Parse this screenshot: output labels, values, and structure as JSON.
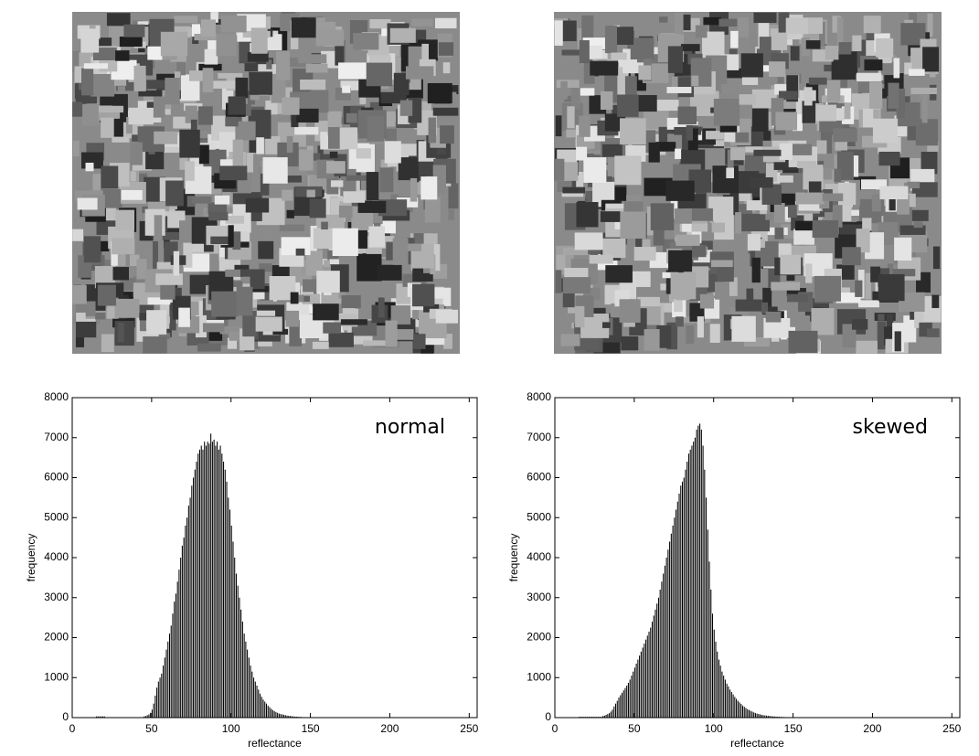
{
  "chart_data": [
    {
      "type": "histogram",
      "annotation": "normal",
      "xlabel": "reflectance",
      "ylabel": "frequency",
      "color": "#000000",
      "xlim": [
        0,
        255
      ],
      "xticks": [
        0,
        50,
        100,
        150,
        200,
        250
      ],
      "ylim": [
        0,
        8000
      ],
      "yticks": [
        0,
        1000,
        2000,
        3000,
        4000,
        5000,
        6000,
        7000,
        8000
      ],
      "bins": [
        0,
        1,
        2,
        3,
        4,
        5,
        6,
        7,
        8,
        9,
        10,
        11,
        12,
        13,
        14,
        15,
        16,
        17,
        18,
        19,
        20,
        21,
        22,
        23,
        24,
        25,
        26,
        27,
        28,
        29,
        30,
        31,
        32,
        33,
        34,
        35,
        36,
        37,
        38,
        39,
        40,
        41,
        42,
        43,
        44,
        45,
        46,
        47,
        48,
        49,
        50,
        51,
        52,
        53,
        54,
        55,
        56,
        57,
        58,
        59,
        60,
        61,
        62,
        63,
        64,
        65,
        66,
        67,
        68,
        69,
        70,
        71,
        72,
        73,
        74,
        75,
        76,
        77,
        78,
        79,
        80,
        81,
        82,
        83,
        84,
        85,
        86,
        87,
        88,
        89,
        90,
        91,
        92,
        93,
        94,
        95,
        96,
        97,
        98,
        99,
        100,
        101,
        102,
        103,
        104,
        105,
        106,
        107,
        108,
        109,
        110,
        111,
        112,
        113,
        114,
        115,
        116,
        117,
        118,
        119,
        120,
        121,
        122,
        123,
        124,
        125,
        126,
        127,
        128,
        129,
        130,
        131,
        132,
        133,
        134,
        135,
        136,
        137,
        138,
        139,
        140,
        141,
        142,
        143,
        144,
        145,
        146,
        147,
        148,
        149,
        150,
        151,
        152,
        153,
        154,
        155,
        156,
        157,
        158,
        159,
        160,
        161,
        162,
        163,
        164,
        165,
        166,
        167,
        168,
        169,
        170,
        171
      ],
      "values": [
        5,
        5,
        5,
        5,
        5,
        5,
        5,
        5,
        5,
        5,
        5,
        5,
        5,
        5,
        5,
        30,
        30,
        30,
        30,
        30,
        30,
        10,
        10,
        10,
        10,
        10,
        10,
        10,
        10,
        10,
        10,
        10,
        10,
        10,
        10,
        10,
        10,
        10,
        10,
        10,
        10,
        10,
        10,
        10,
        10,
        30,
        40,
        60,
        80,
        120,
        200,
        350,
        550,
        750,
        900,
        1000,
        1100,
        1300,
        1500,
        1700,
        1900,
        2100,
        2300,
        2600,
        2900,
        3100,
        3400,
        3700,
        4000,
        4300,
        4500,
        4800,
        5000,
        5300,
        5500,
        5800,
        6000,
        6200,
        6400,
        6600,
        6700,
        6800,
        6700,
        6900,
        6800,
        6900,
        6850,
        7100,
        6900,
        6950,
        6800,
        6900,
        6700,
        6800,
        6600,
        6400,
        6200,
        5900,
        5500,
        5200,
        4800,
        4400,
        4000,
        3600,
        3300,
        3000,
        2700,
        2400,
        2100,
        1900,
        1700,
        1500,
        1300,
        1150,
        1000,
        900,
        800,
        700,
        600,
        520,
        450,
        400,
        350,
        300,
        260,
        220,
        190,
        160,
        140,
        120,
        100,
        90,
        80,
        70,
        60,
        50,
        45,
        40,
        35,
        30,
        25,
        22,
        20,
        18,
        15,
        12,
        10,
        8,
        6,
        5,
        3,
        3,
        3,
        2,
        2,
        2,
        1,
        1,
        1,
        1,
        1,
        1,
        1,
        1,
        1,
        0,
        0,
        0,
        0,
        0,
        0
      ]
    },
    {
      "type": "histogram",
      "annotation": "skewed",
      "xlabel": "reflectance",
      "ylabel": "frequency",
      "color": "#000000",
      "xlim": [
        0,
        255
      ],
      "xticks": [
        0,
        50,
        100,
        150,
        200,
        250
      ],
      "ylim": [
        0,
        8000
      ],
      "yticks": [
        0,
        1000,
        2000,
        3000,
        4000,
        5000,
        6000,
        7000,
        8000
      ],
      "bins": [
        0,
        1,
        2,
        3,
        4,
        5,
        6,
        7,
        8,
        9,
        10,
        11,
        12,
        13,
        14,
        15,
        16,
        17,
        18,
        19,
        20,
        21,
        22,
        23,
        24,
        25,
        26,
        27,
        28,
        29,
        30,
        31,
        32,
        33,
        34,
        35,
        36,
        37,
        38,
        39,
        40,
        41,
        42,
        43,
        44,
        45,
        46,
        47,
        48,
        49,
        50,
        51,
        52,
        53,
        54,
        55,
        56,
        57,
        58,
        59,
        60,
        61,
        62,
        63,
        64,
        65,
        66,
        67,
        68,
        69,
        70,
        71,
        72,
        73,
        74,
        75,
        76,
        77,
        78,
        79,
        80,
        81,
        82,
        83,
        84,
        85,
        86,
        87,
        88,
        89,
        90,
        91,
        92,
        93,
        94,
        95,
        96,
        97,
        98,
        99,
        100,
        101,
        102,
        103,
        104,
        105,
        106,
        107,
        108,
        109,
        110,
        111,
        112,
        113,
        114,
        115,
        116,
        117,
        118,
        119,
        120,
        121,
        122,
        123,
        124,
        125,
        126,
        127,
        128,
        129,
        130,
        131,
        132,
        133,
        134,
        135,
        136,
        137,
        138,
        139,
        140,
        141,
        142,
        143,
        144,
        145,
        146,
        147,
        148,
        149,
        150,
        151,
        152,
        153,
        154,
        155,
        156,
        157,
        158,
        159,
        160,
        161,
        162,
        163,
        164,
        165,
        166,
        167,
        168,
        169,
        170,
        171
      ],
      "values": [
        10,
        10,
        10,
        10,
        10,
        10,
        10,
        10,
        10,
        10,
        10,
        10,
        10,
        10,
        10,
        20,
        20,
        20,
        20,
        20,
        20,
        20,
        20,
        20,
        20,
        20,
        20,
        20,
        20,
        20,
        40,
        50,
        70,
        90,
        110,
        150,
        200,
        280,
        350,
        420,
        500,
        560,
        620,
        680,
        740,
        800,
        870,
        950,
        1050,
        1150,
        1250,
        1350,
        1450,
        1550,
        1650,
        1750,
        1850,
        1950,
        2050,
        2150,
        2250,
        2400,
        2550,
        2700,
        2850,
        3000,
        3200,
        3400,
        3600,
        3800,
        4000,
        4200,
        4400,
        4600,
        4800,
        5000,
        5200,
        5400,
        5600,
        5800,
        5900,
        6000,
        6200,
        6400,
        6600,
        6700,
        6800,
        6900,
        7000,
        7200,
        7300,
        7350,
        7200,
        6800,
        6200,
        5500,
        4700,
        3900,
        3200,
        2600,
        2200,
        1900,
        1650,
        1450,
        1300,
        1150,
        1050,
        950,
        850,
        780,
        700,
        640,
        580,
        520,
        470,
        420,
        380,
        340,
        300,
        270,
        240,
        210,
        190,
        170,
        150,
        130,
        115,
        100,
        90,
        80,
        70,
        60,
        55,
        50,
        45,
        40,
        35,
        30,
        28,
        25,
        22,
        20,
        18,
        16,
        14,
        12,
        10,
        8,
        7,
        6,
        5,
        4,
        4,
        3,
        3,
        3,
        2,
        2,
        2,
        2,
        2,
        1,
        1,
        1,
        1,
        1,
        1,
        1,
        1,
        1,
        1
      ]
    }
  ]
}
